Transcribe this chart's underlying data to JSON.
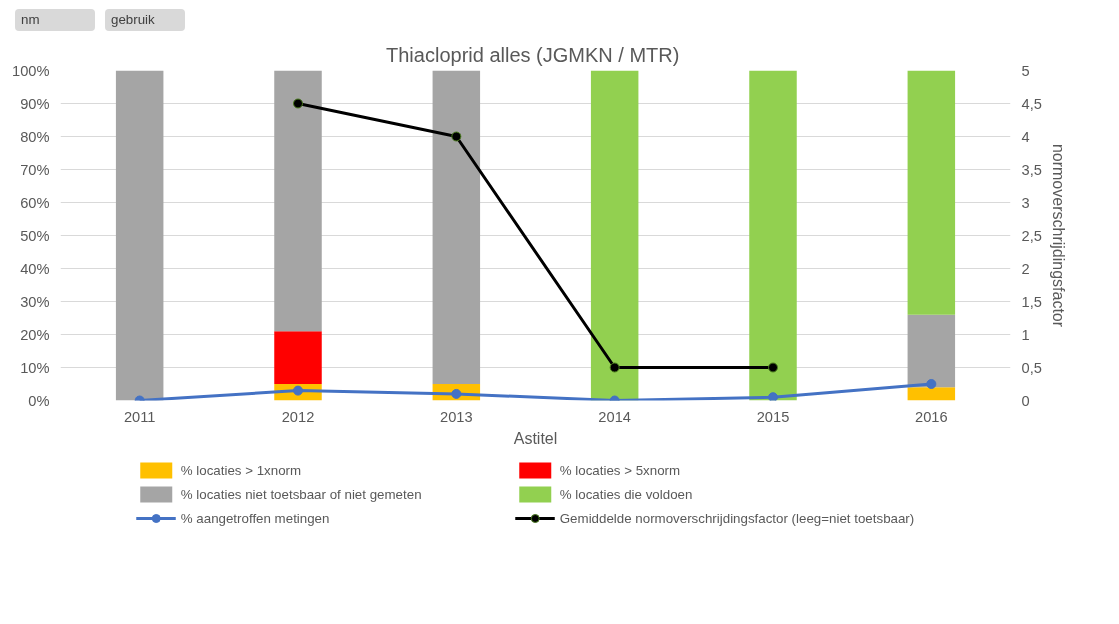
{
  "chart_data": {
    "type": "bar",
    "title": "Thiacloprid  alles (JGMKN / MTR)",
    "xlabel": "Astitel",
    "y2label": "normoverschrijdingsfactor",
    "annotations": [
      "nm",
      "gebruik"
    ],
    "categories": [
      "2011",
      "2012",
      "2013",
      "2014",
      "2015",
      "2016"
    ],
    "stacked": true,
    "grid": "y",
    "legend": "bottom",
    "ylim": [
      0,
      100
    ],
    "yticks": [
      {
        "value": 0,
        "label": "0%"
      },
      {
        "value": 10,
        "label": "10%"
      },
      {
        "value": 20,
        "label": "20%"
      },
      {
        "value": 30,
        "label": "30%"
      },
      {
        "value": 40,
        "label": "40%"
      },
      {
        "value": 50,
        "label": "50%"
      },
      {
        "value": 60,
        "label": "60%"
      },
      {
        "value": 70,
        "label": "70%"
      },
      {
        "value": 80,
        "label": "80%"
      },
      {
        "value": 90,
        "label": "90%"
      },
      {
        "value": 100,
        "label": "100%"
      }
    ],
    "y2lim": [
      0,
      5
    ],
    "y2ticks": [
      0,
      {
        "value": 0.5,
        "label": "0,5"
      },
      1,
      {
        "value": 1.5,
        "label": "1,5"
      },
      2,
      {
        "value": 2.5,
        "label": "2,5"
      },
      3,
      {
        "value": 3.5,
        "label": "3,5"
      },
      4,
      {
        "value": 4.5,
        "label": "4,5"
      },
      5
    ],
    "series": [
      {
        "name": "% locaties > 1xnorm",
        "color": "#ffc000",
        "values": [
          0,
          5,
          5,
          0,
          0,
          4
        ]
      },
      {
        "name": "% locaties > 5xnorm",
        "color": "#ff0000",
        "values": [
          0,
          16,
          0,
          0,
          0,
          0
        ]
      },
      {
        "name": "% locaties niet toetsbaar of niet gemeten",
        "color": "#a5a5a5",
        "values": [
          100,
          79,
          95,
          0,
          0,
          22
        ]
      },
      {
        "name": "% locaties die voldoen",
        "color": "#92d050",
        "values": [
          0,
          0,
          0,
          100,
          100,
          74
        ]
      },
      {
        "name": "% aangetroffen metingen",
        "type": "line",
        "color": "#4472c4",
        "marker": "circle",
        "values": [
          0,
          3,
          2,
          0,
          1,
          5
        ]
      },
      {
        "name": "Gemiddelde normoverschrijdingsfactor (leeg=niet toetsbaar)",
        "type": "line",
        "axis": "y2",
        "color": "#000000",
        "marker": "circle",
        "values": [
          null,
          4.5,
          4,
          0.5,
          0.5,
          null
        ]
      }
    ]
  }
}
